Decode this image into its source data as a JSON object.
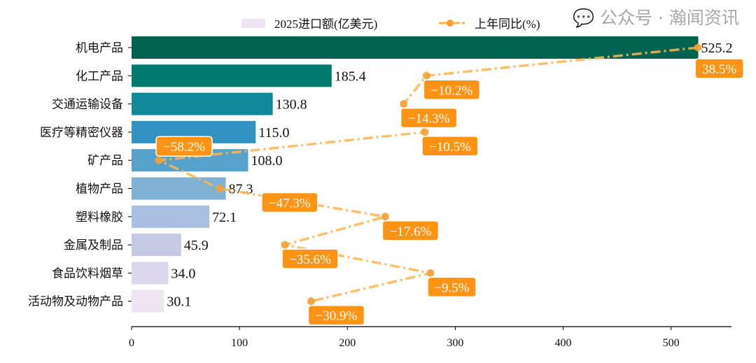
{
  "chart_data": {
    "type": "bar",
    "orientation": "horizontal",
    "categories": [
      "机电产品",
      "化工产品",
      "交通运输设备",
      "医疗等精密仪器",
      "矿产品",
      "植物产品",
      "塑料橡胶",
      "金属及制品",
      "食品饮料烟草",
      "活动物及动物产品"
    ],
    "series": [
      {
        "name": "2025进口额(亿美元)",
        "type": "bar",
        "values": [
          525.2,
          185.4,
          130.8,
          115.0,
          108.0,
          87.3,
          72.1,
          45.9,
          34.0,
          30.1
        ],
        "colors": [
          "#00634f",
          "#007a6e",
          "#10899a",
          "#3191c1",
          "#56a2cd",
          "#7fb1d5",
          "#a8bfdf",
          "#c5c9e3",
          "#dcd7ea",
          "#efe4f2"
        ]
      },
      {
        "name": "上年同比(%)",
        "type": "line",
        "values": [
          38.5,
          -10.2,
          -14.3,
          -10.5,
          -58.2,
          -47.3,
          -17.6,
          -35.6,
          -9.5,
          -30.9
        ],
        "labels": [
          "38.5%",
          "−10.2%",
          "−14.3%",
          "−10.5%",
          "−58.2%",
          "−47.3%",
          "−17.6%",
          "−35.6%",
          "−9.5%",
          "−30.9%"
        ],
        "color": "#ffb54f",
        "marker_color": "#f5a033",
        "label_bg": "#ff9414"
      }
    ],
    "bar_labels": [
      "525.2",
      "185.4",
      "130.8",
      "115.0",
      "108.0",
      "87.3",
      "72.1",
      "45.9",
      "34.0",
      "30.1"
    ],
    "xticks": [
      0,
      100,
      200,
      300,
      400,
      500
    ],
    "xlim": [
      0,
      556
    ],
    "pct_axis_range": [
      -63.1,
      44.5
    ],
    "legend": "top",
    "grid": false
  },
  "watermark": "公众号 · 瀚闻资讯"
}
